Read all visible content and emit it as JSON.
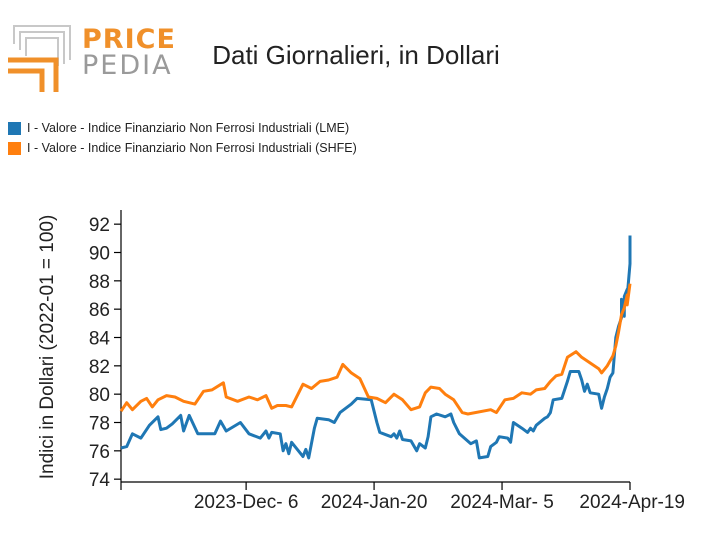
{
  "header": {
    "logo_price": "PRICE",
    "logo_pedia": "PEDIA",
    "title": "Dati Giornalieri, in Dollari"
  },
  "colors": {
    "lme": "#1f77b4",
    "shfe": "#ff7f0e",
    "logo_orange": "#f0902a",
    "logo_gray": "#9a9a9a"
  },
  "chart_data": {
    "type": "line",
    "title": "Dati Giornalieri, in Dollari",
    "xlabel": "",
    "ylabel": "Indici in Dollari (2022-01 = 100)",
    "x_ticks": [
      "2023-Dec- 6",
      "2024-Jan-20",
      "2024-Mar- 5",
      "2024-Apr-19"
    ],
    "y_ticks": [
      74,
      76,
      78,
      80,
      82,
      84,
      86,
      88,
      90,
      92
    ],
    "xlim": [
      "2023-10-23",
      "2024-04-19"
    ],
    "ylim": [
      73.8,
      93
    ],
    "legend_position": "top-left",
    "series": [
      {
        "name": "I - Valore - Indice Finanziario Non Ferrosi Industriali (LME)",
        "color": "#1f77b4",
        "points": [
          [
            "2023-10-23",
            76.2
          ],
          [
            "2023-10-25",
            76.3
          ],
          [
            "2023-10-27",
            77.2
          ],
          [
            "2023-10-30",
            76.9
          ],
          [
            "2023-11-02",
            77.8
          ],
          [
            "2023-11-05",
            78.4
          ],
          [
            "2023-11-06",
            77.5
          ],
          [
            "2023-11-08",
            77.6
          ],
          [
            "2023-11-10",
            77.9
          ],
          [
            "2023-11-13",
            78.5
          ],
          [
            "2023-11-14",
            77.4
          ],
          [
            "2023-11-16",
            78.5
          ],
          [
            "2023-11-19",
            77.2
          ],
          [
            "2023-11-25",
            77.2
          ],
          [
            "2023-11-27",
            78.1
          ],
          [
            "2023-11-29",
            77.4
          ],
          [
            "2023-12-04",
            78.0
          ],
          [
            "2023-12-07",
            77.2
          ],
          [
            "2023-12-11",
            76.9
          ],
          [
            "2023-12-13",
            77.4
          ],
          [
            "2023-12-14",
            76.9
          ],
          [
            "2023-12-15",
            77.3
          ],
          [
            "2023-12-18",
            77.2
          ],
          [
            "2023-12-19",
            76.0
          ],
          [
            "2023-12-20",
            76.5
          ],
          [
            "2023-12-21",
            75.8
          ],
          [
            "2023-12-22",
            76.6
          ],
          [
            "2023-12-24",
            76.1
          ],
          [
            "2023-12-26",
            75.6
          ],
          [
            "2023-12-27",
            76.1
          ],
          [
            "2023-12-28",
            75.5
          ],
          [
            "2023-12-30",
            77.6
          ],
          [
            "2023-12-31",
            78.3
          ],
          [
            "2024-01-04",
            78.2
          ],
          [
            "2024-01-06",
            78.0
          ],
          [
            "2024-01-08",
            78.7
          ],
          [
            "2024-01-12",
            79.3
          ],
          [
            "2024-01-14",
            79.7
          ],
          [
            "2024-01-19",
            79.6
          ],
          [
            "2024-01-21",
            78.0
          ],
          [
            "2024-01-22",
            77.3
          ],
          [
            "2024-01-26",
            77.0
          ],
          [
            "2024-01-27",
            77.2
          ],
          [
            "2024-01-28",
            76.9
          ],
          [
            "2024-01-29",
            77.4
          ],
          [
            "2024-01-30",
            76.8
          ],
          [
            "2024-02-02",
            76.7
          ],
          [
            "2024-02-04",
            76.0
          ],
          [
            "2024-02-05",
            76.5
          ],
          [
            "2024-02-07",
            76.2
          ],
          [
            "2024-02-08",
            77.0
          ],
          [
            "2024-02-09",
            78.4
          ],
          [
            "2024-02-11",
            78.6
          ],
          [
            "2024-02-14",
            78.4
          ],
          [
            "2024-02-16",
            78.6
          ],
          [
            "2024-02-17",
            78.0
          ],
          [
            "2024-02-19",
            77.2
          ],
          [
            "2024-02-23",
            76.5
          ],
          [
            "2024-02-25",
            76.7
          ],
          [
            "2024-02-26",
            75.5
          ],
          [
            "2024-02-29",
            75.6
          ],
          [
            "2024-03-01",
            76.3
          ],
          [
            "2024-03-03",
            76.6
          ],
          [
            "2024-03-04",
            77.0
          ],
          [
            "2024-03-07",
            76.9
          ],
          [
            "2024-03-08",
            76.6
          ],
          [
            "2024-03-09",
            78.0
          ],
          [
            "2024-03-12",
            77.6
          ],
          [
            "2024-03-14",
            77.3
          ],
          [
            "2024-03-15",
            77.6
          ],
          [
            "2024-03-16",
            77.4
          ],
          [
            "2024-03-17",
            77.8
          ],
          [
            "2024-03-20",
            78.3
          ],
          [
            "2024-03-21",
            78.4
          ],
          [
            "2024-03-22",
            78.7
          ],
          [
            "2024-03-23",
            79.6
          ],
          [
            "2024-03-26",
            79.7
          ],
          [
            "2024-03-27",
            80.3
          ],
          [
            "2024-03-28",
            80.9
          ],
          [
            "2024-03-29",
            81.6
          ],
          [
            "2024-04-01",
            81.6
          ],
          [
            "2024-04-02",
            81.0
          ],
          [
            "2024-04-03",
            80.2
          ],
          [
            "2024-04-04",
            80.7
          ],
          [
            "2024-04-05",
            80.1
          ],
          [
            "2024-04-08",
            80.0
          ],
          [
            "2024-04-09",
            79.0
          ],
          [
            "2024-04-10",
            79.8
          ],
          [
            "2024-04-11",
            80.4
          ],
          [
            "2024-04-12",
            81.2
          ],
          [
            "2024-04-13",
            81.5
          ],
          [
            "2024-04-14",
            84.0
          ],
          [
            "2024-04-15",
            84.8
          ],
          [
            "2024-04-16",
            85.4
          ],
          [
            "2024-04-16",
            86.7
          ],
          [
            "2024-04-17",
            85.5
          ],
          [
            "2024-04-17",
            86.9
          ],
          [
            "2024-04-18",
            87.4
          ],
          [
            "2024-04-18",
            86.9
          ],
          [
            "2024-04-19",
            89.2
          ],
          [
            "2024-04-19",
            91.2
          ]
        ]
      },
      {
        "name": "I - Valore - Indice Finanziario Non Ferrosi Industriali (SHFE)",
        "color": "#ff7f0e",
        "points": [
          [
            "2023-10-23",
            78.8
          ],
          [
            "2023-10-25",
            79.4
          ],
          [
            "2023-10-27",
            78.9
          ],
          [
            "2023-10-30",
            79.5
          ],
          [
            "2023-11-01",
            79.7
          ],
          [
            "2023-11-03",
            79.1
          ],
          [
            "2023-11-05",
            79.6
          ],
          [
            "2023-11-08",
            79.9
          ],
          [
            "2023-11-11",
            79.8
          ],
          [
            "2023-11-14",
            79.5
          ],
          [
            "2023-11-18",
            79.3
          ],
          [
            "2023-11-21",
            80.2
          ],
          [
            "2023-11-24",
            80.3
          ],
          [
            "2023-11-28",
            80.8
          ],
          [
            "2023-11-29",
            79.8
          ],
          [
            "2023-12-03",
            79.5
          ],
          [
            "2023-12-07",
            79.8
          ],
          [
            "2023-12-10",
            79.6
          ],
          [
            "2023-12-13",
            79.9
          ],
          [
            "2023-12-15",
            79.0
          ],
          [
            "2023-12-17",
            79.2
          ],
          [
            "2023-12-20",
            79.2
          ],
          [
            "2023-12-22",
            79.1
          ],
          [
            "2023-12-26",
            80.7
          ],
          [
            "2023-12-29",
            80.4
          ],
          [
            "2024-01-01",
            80.9
          ],
          [
            "2024-01-04",
            81.0
          ],
          [
            "2024-01-07",
            81.2
          ],
          [
            "2024-01-09",
            82.1
          ],
          [
            "2024-01-12",
            81.5
          ],
          [
            "2024-01-15",
            81.1
          ],
          [
            "2024-01-18",
            79.8
          ],
          [
            "2024-01-21",
            79.7
          ],
          [
            "2024-01-24",
            79.4
          ],
          [
            "2024-01-27",
            80.0
          ],
          [
            "2024-01-30",
            79.6
          ],
          [
            "2024-02-02",
            78.9
          ],
          [
            "2024-02-05",
            79.1
          ],
          [
            "2024-02-07",
            80.1
          ],
          [
            "2024-02-09",
            80.5
          ],
          [
            "2024-02-12",
            80.4
          ],
          [
            "2024-02-14",
            80.0
          ],
          [
            "2024-02-17",
            79.6
          ],
          [
            "2024-02-20",
            78.7
          ],
          [
            "2024-02-22",
            78.6
          ],
          [
            "2024-03-01",
            78.9
          ],
          [
            "2024-03-03",
            78.7
          ],
          [
            "2024-03-06",
            79.6
          ],
          [
            "2024-03-09",
            79.7
          ],
          [
            "2024-03-12",
            80.1
          ],
          [
            "2024-03-15",
            80.0
          ],
          [
            "2024-03-17",
            80.3
          ],
          [
            "2024-03-20",
            80.4
          ],
          [
            "2024-03-22",
            80.9
          ],
          [
            "2024-03-24",
            81.3
          ],
          [
            "2024-03-26",
            81.4
          ],
          [
            "2024-03-28",
            82.6
          ],
          [
            "2024-03-31",
            83.0
          ],
          [
            "2024-04-02",
            82.6
          ],
          [
            "2024-04-05",
            82.2
          ],
          [
            "2024-04-08",
            81.8
          ],
          [
            "2024-04-09",
            81.5
          ],
          [
            "2024-04-11",
            82.0
          ],
          [
            "2024-04-13",
            82.7
          ],
          [
            "2024-04-14",
            83.4
          ],
          [
            "2024-04-15",
            84.4
          ],
          [
            "2024-04-16",
            85.6
          ],
          [
            "2024-04-17",
            86.1
          ],
          [
            "2024-04-18",
            87.0
          ],
          [
            "2024-04-18",
            86.3
          ],
          [
            "2024-04-19",
            87.8
          ]
        ]
      }
    ]
  }
}
